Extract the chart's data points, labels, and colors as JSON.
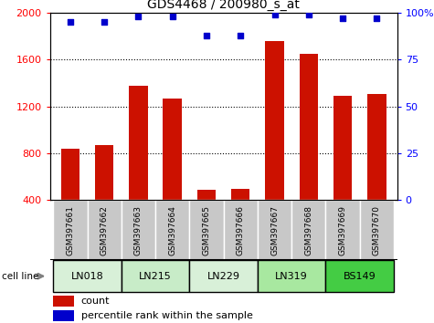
{
  "title": "GDS4468 / 200980_s_at",
  "samples": [
    "GSM397661",
    "GSM397662",
    "GSM397663",
    "GSM397664",
    "GSM397665",
    "GSM397666",
    "GSM397667",
    "GSM397668",
    "GSM397669",
    "GSM397670"
  ],
  "counts": [
    840,
    870,
    1380,
    1270,
    490,
    500,
    1760,
    1650,
    1290,
    1310
  ],
  "percentiles": [
    95,
    95,
    98,
    98,
    88,
    88,
    99,
    99,
    97,
    97
  ],
  "cell_lines": [
    {
      "name": "LN018",
      "start": 0,
      "end": 2,
      "color": "#d8f0d8"
    },
    {
      "name": "LN215",
      "start": 2,
      "end": 4,
      "color": "#c8ecc8"
    },
    {
      "name": "LN229",
      "start": 4,
      "end": 6,
      "color": "#d8f0d8"
    },
    {
      "name": "LN319",
      "start": 6,
      "end": 8,
      "color": "#a8e8a0"
    },
    {
      "name": "BS149",
      "start": 8,
      "end": 10,
      "color": "#44cc44"
    }
  ],
  "ylim_left": [
    400,
    2000
  ],
  "ylim_right": [
    0,
    100
  ],
  "yticks_left": [
    400,
    800,
    1200,
    1600,
    2000
  ],
  "yticks_right": [
    0,
    25,
    50,
    75,
    100
  ],
  "bar_color": "#cc1100",
  "dot_color": "#0000cc",
  "legend_count_label": "count",
  "legend_pct_label": "percentile rank within the sample",
  "cell_line_label": "cell line",
  "bar_width": 0.55,
  "sample_box_color": "#c8c8c8"
}
